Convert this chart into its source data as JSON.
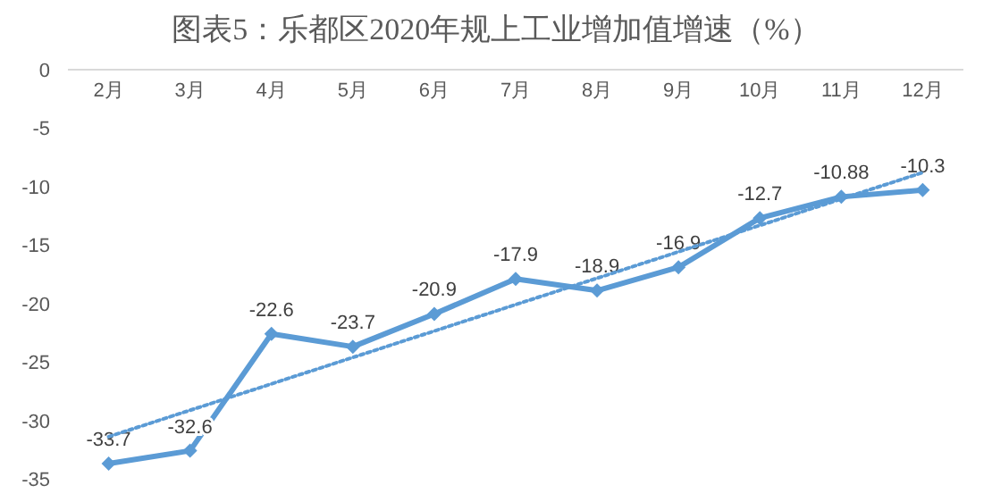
{
  "chart_data": {
    "type": "line",
    "title": "图表5：乐都区2020年规上工业增加值增速（%）",
    "categories": [
      "2月",
      "3月",
      "4月",
      "5月",
      "6月",
      "7月",
      "8月",
      "9月",
      "10月",
      "11月",
      "12月"
    ],
    "series": [
      {
        "color": "#5b9bd5",
        "values": [
          -33.7,
          -32.6,
          -22.6,
          -23.7,
          -20.9,
          -17.9,
          -18.9,
          -16.9,
          -12.7,
          -10.88,
          -10.3
        ],
        "marker": "diamond",
        "line_style": "solid",
        "data_labels": true
      },
      {
        "type": "line",
        "color": "#5b9bd5",
        "x": [
          "2月",
          "12月"
        ],
        "values": [
          -31.4,
          -8.8
        ],
        "marker": "none",
        "line_style": "dotted"
      }
    ],
    "ylim": [
      -35,
      0
    ],
    "yticks": [
      0,
      -5,
      -10,
      -15,
      -20,
      -25,
      -30,
      -35
    ],
    "grid": false
  }
}
